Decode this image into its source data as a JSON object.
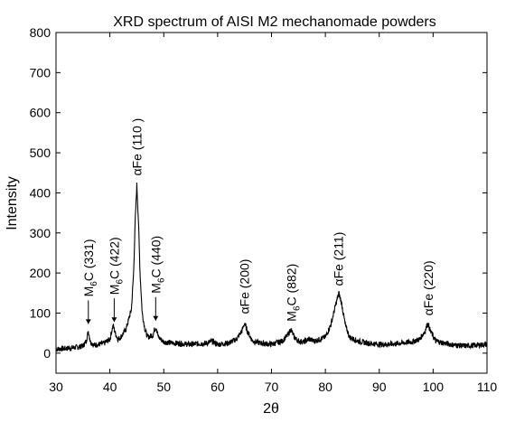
{
  "chart_data": {
    "type": "line",
    "title": "XRD spectrum of AISI M2 mechanomade powders",
    "xlabel": "2θ",
    "ylabel": "Intensity",
    "xlim": [
      30,
      110
    ],
    "ylim": [
      -50,
      800
    ],
    "xticks": [
      "30",
      "40",
      "50",
      "60",
      "70",
      "80",
      "90",
      "100",
      "110"
    ],
    "yticks": [
      "0",
      "100",
      "200",
      "300",
      "400",
      "500",
      "600",
      "700",
      "800"
    ],
    "grid": false,
    "series": [
      {
        "x": [
          30,
          32,
          34,
          35,
          35.6,
          36,
          36.4,
          37,
          38,
          39,
          40,
          40.6,
          41,
          41.5,
          42,
          43,
          44,
          44.4,
          44.7,
          45,
          45.3,
          45.6,
          46,
          46.5,
          47,
          48,
          48.3,
          48.6,
          49,
          50,
          52,
          55,
          58,
          59,
          60,
          62,
          63.5,
          64.5,
          65,
          65.5,
          66.5,
          68,
          70,
          72,
          73,
          73.6,
          74.2,
          75,
          76,
          77,
          78,
          79,
          80,
          81,
          82,
          82.5,
          83,
          83.7,
          84.5,
          86,
          88,
          90,
          92,
          94,
          96,
          97.5,
          98.5,
          99,
          99.5,
          100.5,
          102,
          104,
          106,
          108,
          110
        ],
        "y": [
          10,
          12,
          15,
          18,
          30,
          55,
          28,
          20,
          22,
          25,
          35,
          70,
          50,
          35,
          40,
          60,
          110,
          200,
          330,
          420,
          330,
          200,
          100,
          60,
          40,
          45,
          60,
          65,
          40,
          28,
          25,
          22,
          25,
          30,
          22,
          25,
          35,
          55,
          75,
          55,
          30,
          25,
          22,
          30,
          45,
          60,
          40,
          30,
          28,
          35,
          30,
          35,
          40,
          70,
          125,
          150,
          125,
          70,
          40,
          30,
          25,
          22,
          22,
          25,
          28,
          35,
          55,
          75,
          55,
          30,
          25,
          20,
          18,
          20,
          22
        ]
      }
    ],
    "annotations": [
      {
        "sub": "M6C (331)",
        "x": 36,
        "arrow": true
      },
      {
        "sub": "M6C (422)",
        "x": 40.8,
        "arrow": true
      },
      {
        "sub": "αFe (110 )",
        "x": 45,
        "arrow": false
      },
      {
        "sub": "M6C (440)",
        "x": 48.5,
        "arrow": true
      },
      {
        "sub": "αFe (200)",
        "x": 65,
        "arrow": false
      },
      {
        "sub": "M6C (882)",
        "x": 73.7,
        "arrow": false
      },
      {
        "sub": "αFe (211)",
        "x": 82.4,
        "arrow": false
      },
      {
        "sub": "αFe (220)",
        "x": 99.1,
        "arrow": false
      }
    ]
  }
}
